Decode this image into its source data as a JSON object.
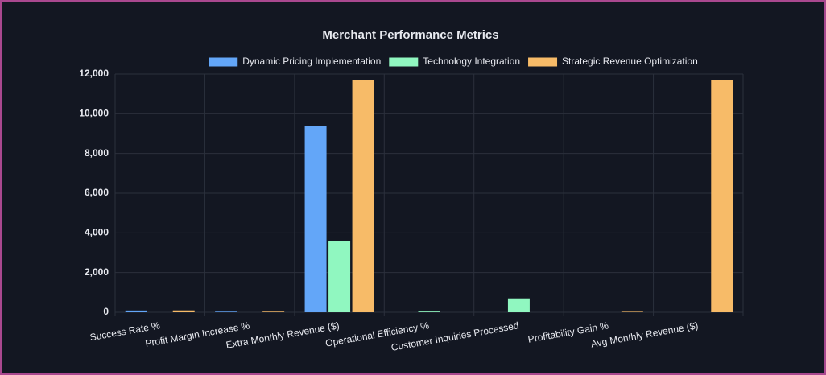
{
  "chart_data": {
    "type": "bar",
    "title": "Merchant Performance Metrics",
    "categories": [
      "Success Rate %",
      "Profit Margin Increase %",
      "Extra Monthly Revenue ($)",
      "Operational Efficiency %",
      "Customer Inquiries Processed",
      "Profitability Gain %",
      "Avg Monthly Revenue ($)"
    ],
    "series": [
      {
        "name": "Dynamic Pricing Implementation",
        "color": "#63a6f8",
        "values": [
          87,
          30,
          9400,
          0,
          0,
          0,
          0
        ]
      },
      {
        "name": "Technology Integration",
        "color": "#90f7c0",
        "values": [
          0,
          0,
          3600,
          35,
          700,
          0,
          0
        ]
      },
      {
        "name": "Strategic Revenue Optimization",
        "color": "#f7bb68",
        "values": [
          92,
          30,
          11700,
          0,
          0,
          25,
          11700
        ]
      }
    ],
    "ylim": [
      0,
      12000
    ],
    "yticks": [
      0,
      {
        "value": 2000,
        "label": "2,000"
      },
      {
        "value": 4000,
        "label": "4,000"
      },
      {
        "value": 6000,
        "label": "6,000"
      },
      {
        "value": 8000,
        "label": "8,000"
      },
      {
        "value": 10000,
        "label": "10,000"
      },
      {
        "value": 12000,
        "label": "12,000"
      }
    ],
    "grid": true,
    "legend": "top"
  }
}
